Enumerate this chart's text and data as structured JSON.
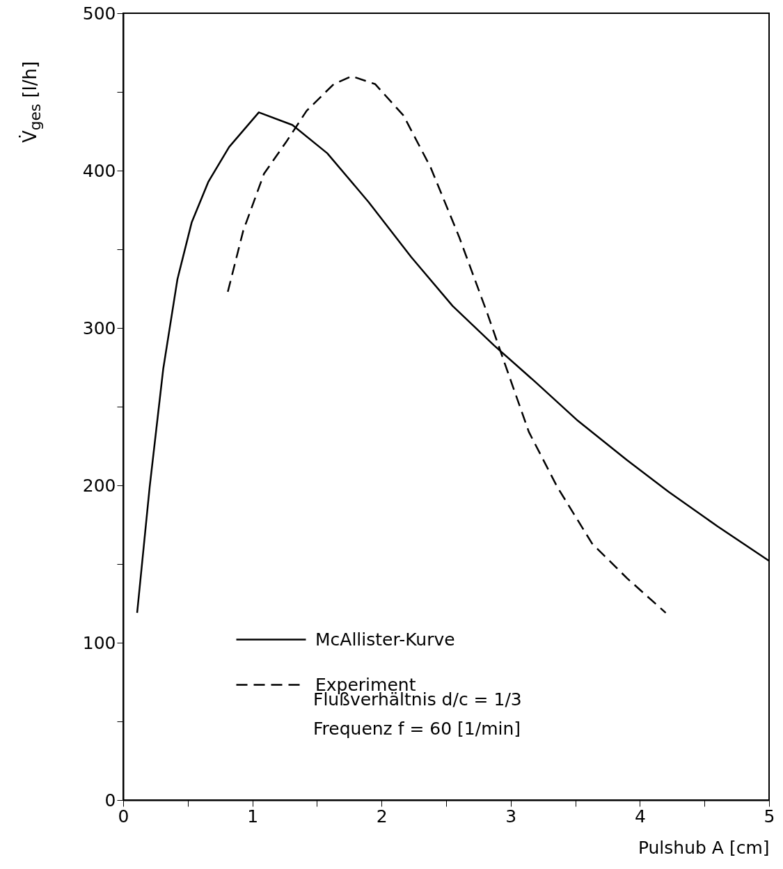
{
  "chart_data": {
    "type": "line",
    "xlabel": "Pulshub A [cm]",
    "ylabel": "V̇$_{ges}$ [l/h]",
    "xlim": [
      0,
      5
    ],
    "ylim": [
      0,
      500
    ],
    "xticks": [
      0,
      {
        "value": 0.5,
        "label": null
      },
      1,
      {
        "value": 1.5,
        "label": null
      },
      2,
      {
        "value": 2.5,
        "label": null
      },
      3,
      {
        "value": 3.5,
        "label": null
      },
      4,
      {
        "value": 4.5,
        "label": null
      },
      5
    ],
    "yticks": [
      0,
      {
        "value": 50,
        "label": null
      },
      100,
      {
        "value": 150,
        "label": null
      },
      200,
      {
        "value": 250,
        "label": null
      },
      300,
      {
        "value": 350,
        "label": null
      },
      400,
      {
        "value": 450,
        "label": null
      },
      500
    ],
    "grid": false,
    "legend": "bottom left",
    "marker": "none",
    "series": [
      {
        "name": "McAllister-Kurve",
        "color": "#000000",
        "line_style": "solid",
        "x": [
          0.108,
          0.205,
          0.31,
          0.42,
          0.53,
          0.66,
          0.82,
          1.05,
          1.31,
          1.58,
          1.9,
          2.23,
          2.55,
          2.87,
          3.2,
          3.52,
          3.9,
          4.22,
          4.6,
          5.0
        ],
        "values": [
          119,
          199,
          274,
          331,
          367,
          393,
          415,
          437,
          429,
          411,
          380,
          345,
          314,
          289,
          265,
          241,
          216,
          196,
          174,
          152
        ]
      },
      {
        "name": "Experiment",
        "color": "#000000",
        "line_style": "dashed",
        "x": [
          0.81,
          0.93,
          1.09,
          1.26,
          1.42,
          1.63,
          1.77,
          1.95,
          2.17,
          2.38,
          2.6,
          2.82,
          2.93,
          3.14,
          3.36,
          3.63,
          3.9,
          4.2
        ],
        "values": [
          323,
          362,
          398,
          418,
          438,
          455,
          460,
          455,
          435,
          402,
          358,
          309,
          283,
          234,
          199,
          163,
          141,
          119
        ]
      }
    ],
    "annotations": [
      "Flußverhältnis d/c = 1/3",
      "Frequenz f = 60 [1/min]"
    ]
  }
}
